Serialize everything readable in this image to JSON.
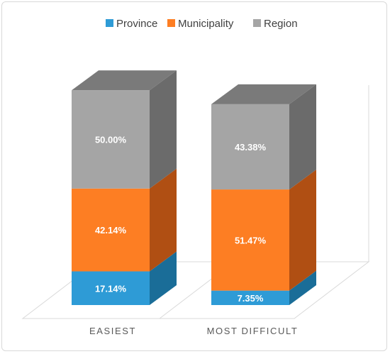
{
  "chart_data": {
    "type": "bar",
    "stacked": true,
    "three_d": true,
    "categories": [
      "EASIEST",
      "MOST DIFFICULT"
    ],
    "series": [
      {
        "name": "Province",
        "values": [
          17.14,
          7.35
        ],
        "labels": [
          "17.14%",
          "7.35%"
        ],
        "color": "#2e9bd6",
        "side_color": "#1a6d98"
      },
      {
        "name": "Municipality",
        "values": [
          42.14,
          51.47
        ],
        "labels": [
          "42.14%",
          "51.47%"
        ],
        "color": "#fd7e23",
        "side_color": "#b04f13"
      },
      {
        "name": "Region",
        "values": [
          50.0,
          43.38
        ],
        "labels": [
          "50.00%",
          "43.38%"
        ],
        "color": "#a5a5a5",
        "side_color": "#6b6b6b"
      }
    ],
    "top_color": "#7a7a7a",
    "legend_position": "top",
    "grid": false,
    "title": "",
    "xlabel": "",
    "ylabel": ""
  }
}
